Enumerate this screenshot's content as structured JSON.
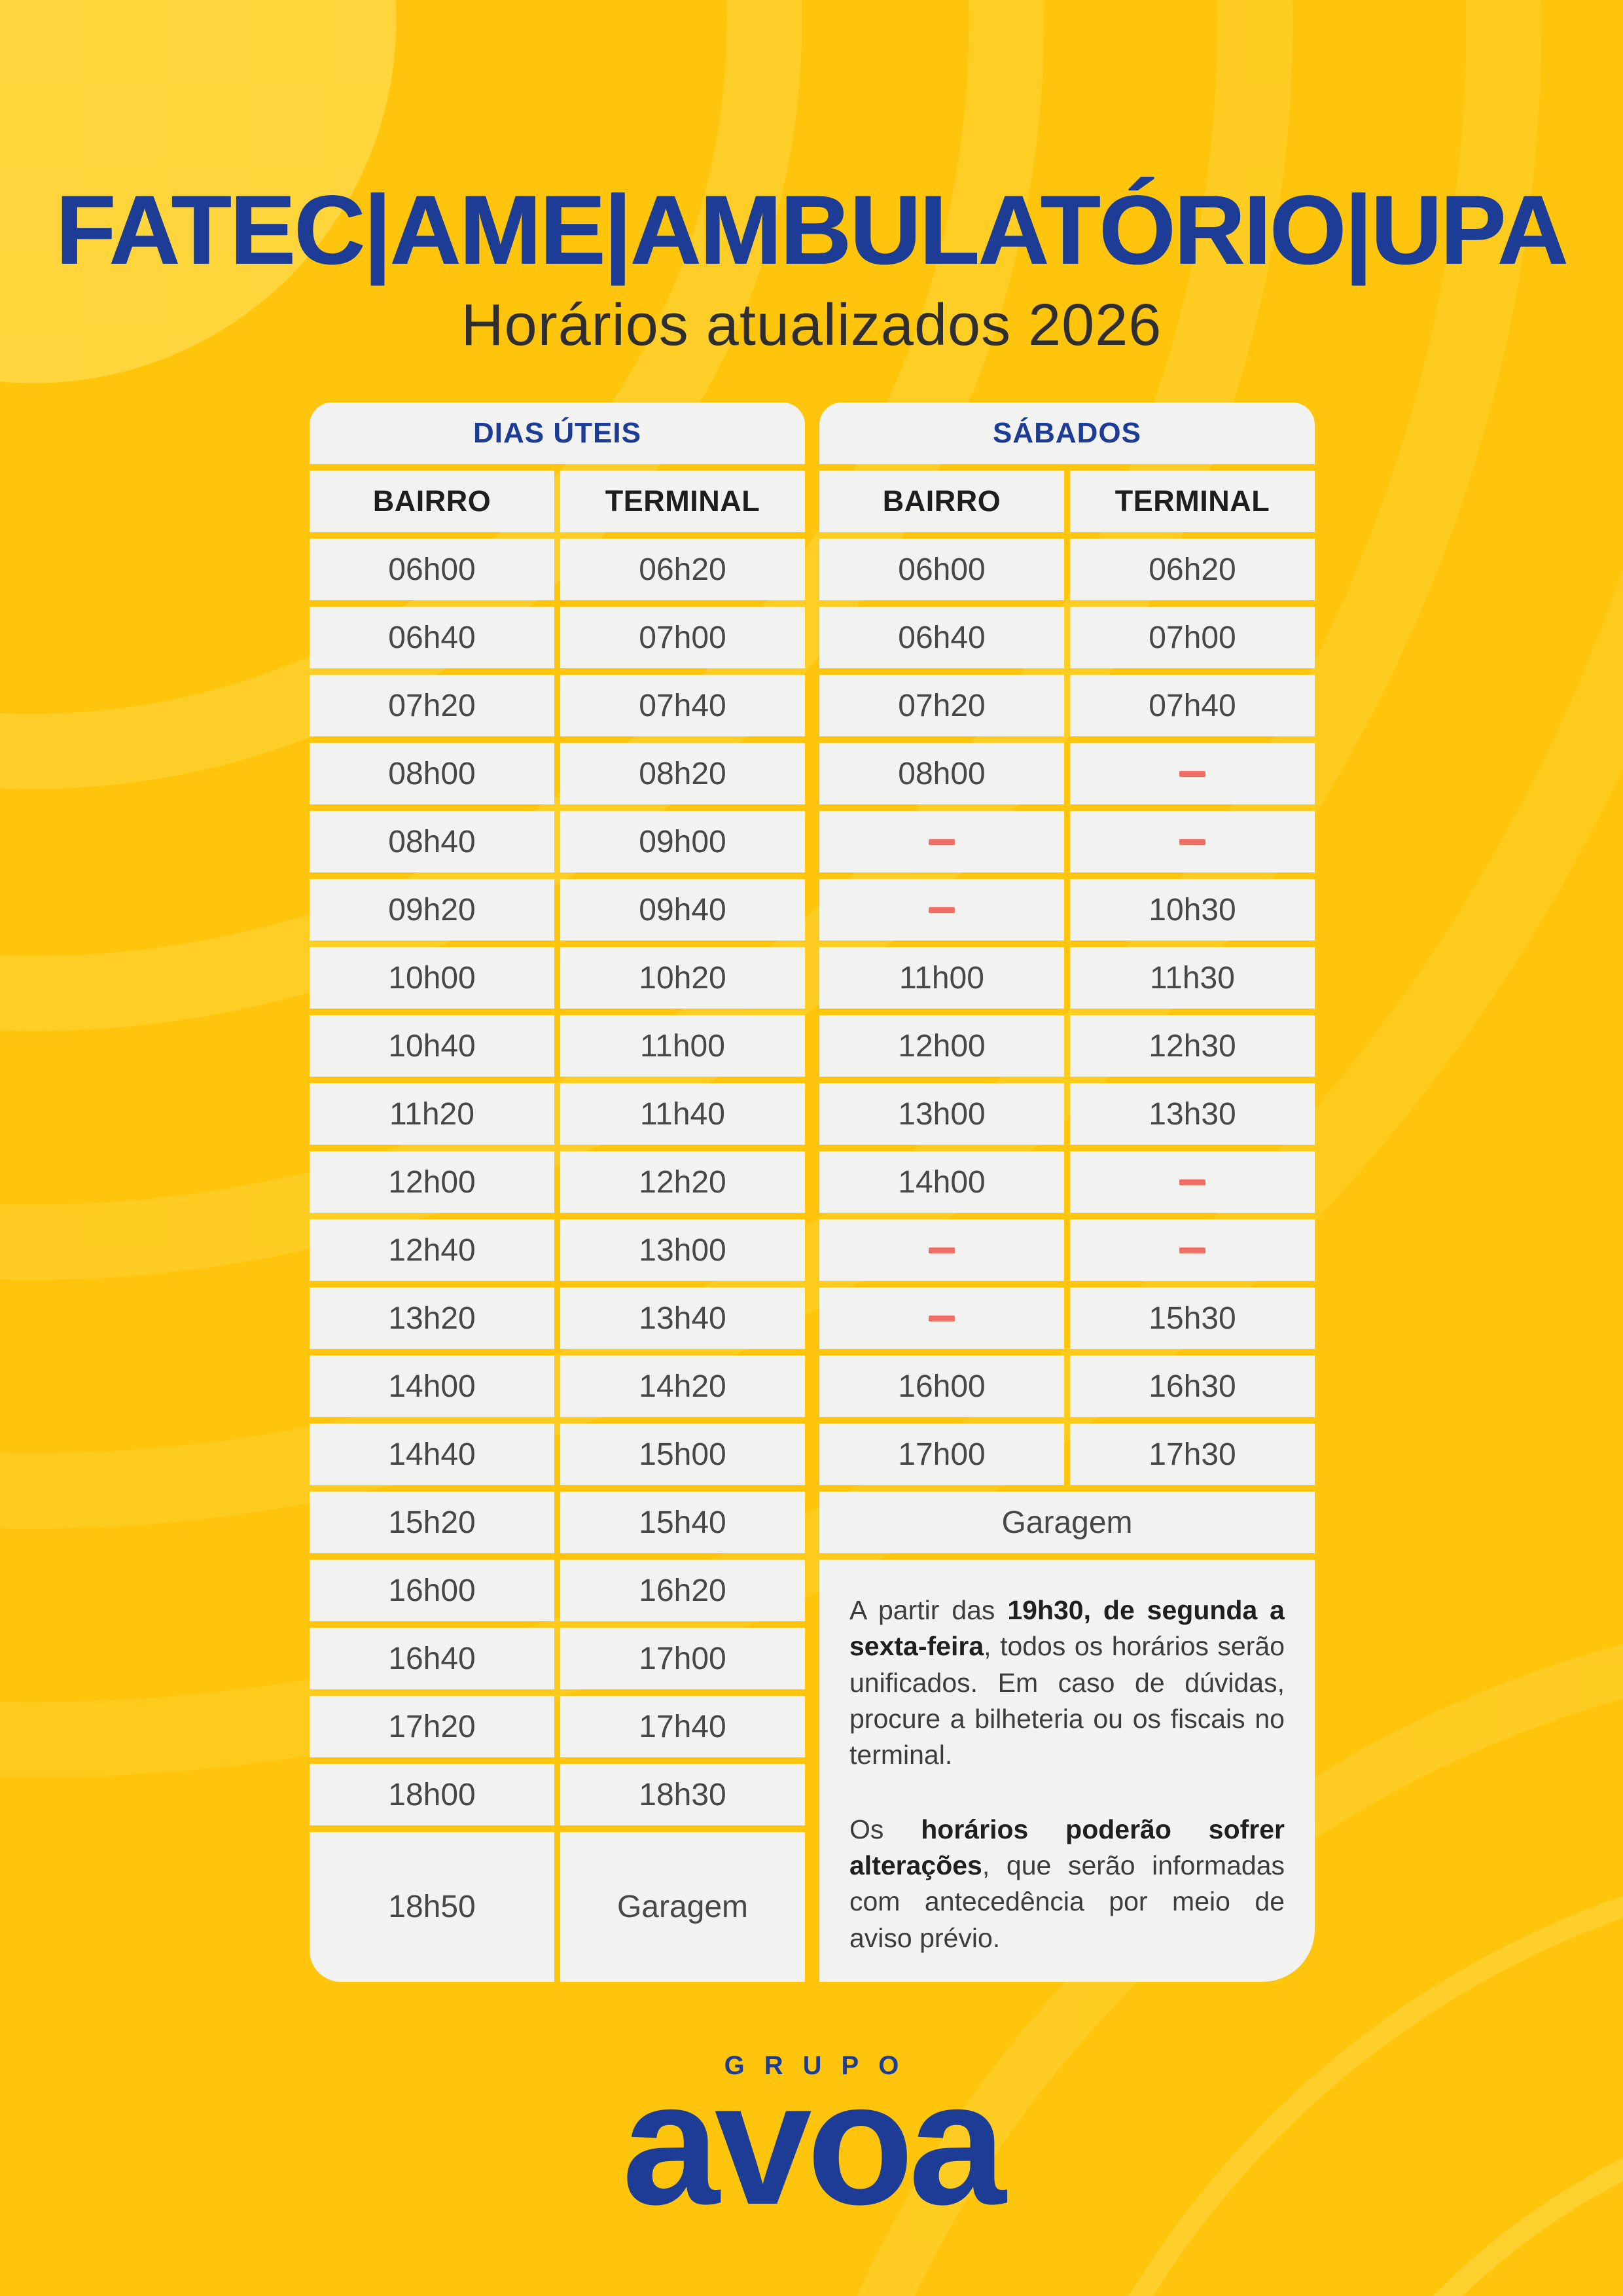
{
  "header": {
    "title": "FATEC|AME|AMBULATÓRIO|UPA",
    "subtitle": "Horários atualizados 2026"
  },
  "weekday_table": {
    "title": "DIAS ÚTEIS",
    "columns": [
      "BAIRRO",
      "TERMINAL"
    ],
    "rows": [
      [
        "06h00",
        "06h20"
      ],
      [
        "06h40",
        "07h00"
      ],
      [
        "07h20",
        "07h40"
      ],
      [
        "08h00",
        "08h20"
      ],
      [
        "08h40",
        "09h00"
      ],
      [
        "09h20",
        "09h40"
      ],
      [
        "10h00",
        "10h20"
      ],
      [
        "10h40",
        "11h00"
      ],
      [
        "11h20",
        "11h40"
      ],
      [
        "12h00",
        "12h20"
      ],
      [
        "12h40",
        "13h00"
      ],
      [
        "13h20",
        "13h40"
      ],
      [
        "14h00",
        "14h20"
      ],
      [
        "14h40",
        "15h00"
      ],
      [
        "15h20",
        "15h40"
      ],
      [
        "16h00",
        "16h20"
      ],
      [
        "16h40",
        "17h00"
      ],
      [
        "17h20",
        "17h40"
      ],
      [
        "18h00",
        "18h30"
      ],
      [
        "18h50",
        "Garagem"
      ]
    ]
  },
  "saturday_table": {
    "title": "SÁBADOS",
    "columns": [
      "BAIRRO",
      "TERMINAL"
    ],
    "rows": [
      [
        "06h00",
        "06h20"
      ],
      [
        "06h40",
        "07h00"
      ],
      [
        "07h20",
        "07h40"
      ],
      [
        "08h00",
        "—"
      ],
      [
        "—",
        "—"
      ],
      [
        "—",
        "10h30"
      ],
      [
        "11h00",
        "11h30"
      ],
      [
        "12h00",
        "12h30"
      ],
      [
        "13h00",
        "13h30"
      ],
      [
        "14h00",
        "—"
      ],
      [
        "—",
        "—"
      ],
      [
        "—",
        "15h30"
      ],
      [
        "16h00",
        "16h30"
      ],
      [
        "17h00",
        "17h30"
      ]
    ],
    "garage_label": "Garagem"
  },
  "notes": {
    "paragraphs": [
      [
        {
          "text": "A partir das ",
          "bold": false
        },
        {
          "text": "19h30, de segunda a sexta-feira",
          "bold": true
        },
        {
          "text": ", todos os horários serão unificados. Em caso de dúvidas, procure a bilheteria ou os fiscais no terminal.",
          "bold": false
        }
      ],
      [
        {
          "text": "Os ",
          "bold": false
        },
        {
          "text": "horários poderão sofrer alterações",
          "bold": true
        },
        {
          "text": ", que serão informadas com antecedência por meio de aviso prévio.",
          "bold": false
        }
      ]
    ]
  },
  "footer": {
    "group_label": "GRUPO",
    "brand": "avoa"
  },
  "colors": {
    "accent_blue": "#1C3C96",
    "background_yellow": "#FEC50C",
    "cell_background": "#F2F2F0",
    "dash_red": "#EE7066",
    "time_text": "#474747"
  }
}
